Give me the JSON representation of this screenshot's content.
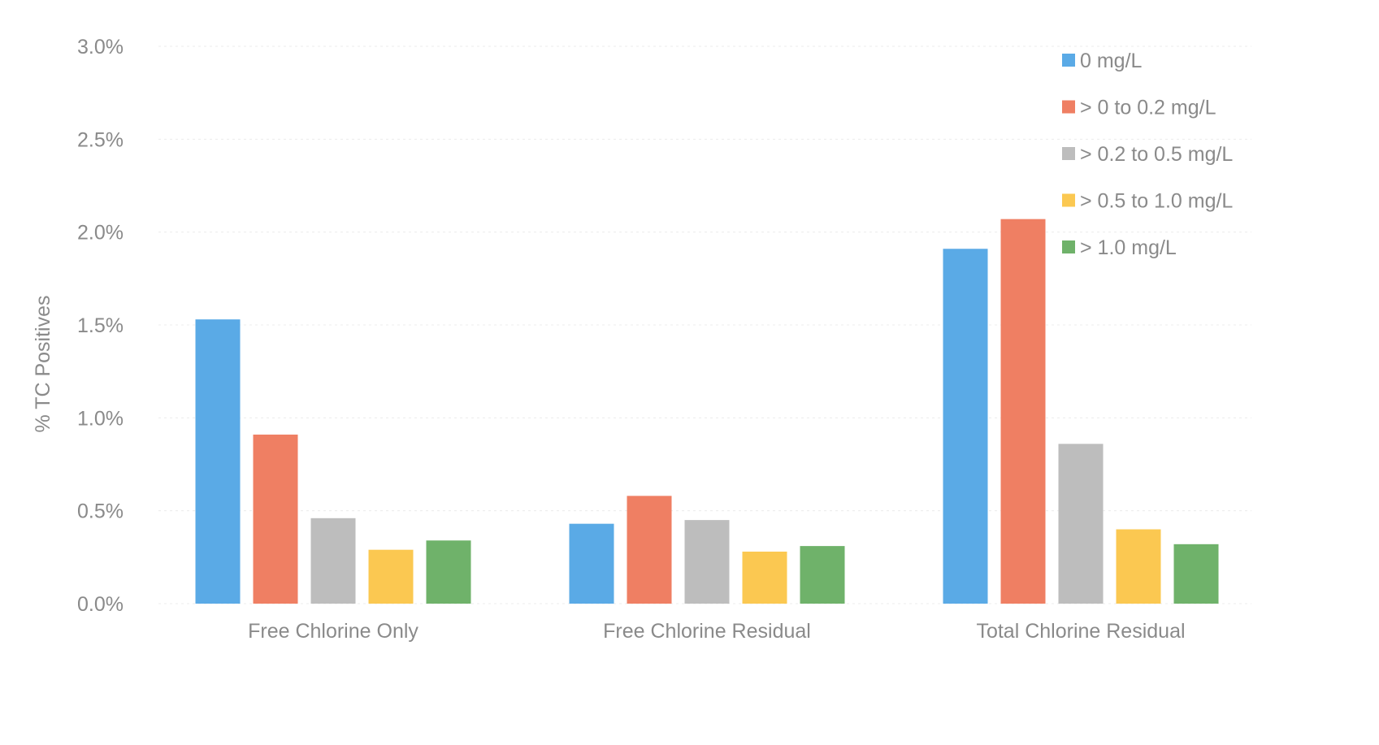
{
  "chart_data": {
    "type": "bar",
    "title": "",
    "xlabel": "",
    "ylabel": "% TC Positives",
    "categories": [
      "Free Chlorine Only",
      "Free Chlorine Residual",
      "Total Chlorine Residual"
    ],
    "series": [
      {
        "name": "0 mg/L",
        "color": "#5aaae6",
        "values": [
          1.53,
          0.43,
          1.91
        ]
      },
      {
        "name": "> 0 to 0.2 mg/L",
        "color": "#ef7f63",
        "values": [
          0.91,
          0.58,
          2.07
        ]
      },
      {
        "name": "> 0.2 to 0.5 mg/L",
        "color": "#bdbdbd",
        "values": [
          0.46,
          0.45,
          0.86
        ]
      },
      {
        "name": "> 0.5 to 1.0 mg/L",
        "color": "#fbc851",
        "values": [
          0.29,
          0.28,
          0.4
        ]
      },
      {
        "name": "> 1.0 mg/L",
        "color": "#6fb26a",
        "values": [
          0.34,
          0.31,
          0.32
        ]
      }
    ],
    "ylim": [
      0,
      3.0
    ],
    "yticks": [
      "0.0%",
      "0.5%",
      "1.0%",
      "1.5%",
      "2.0%",
      "2.5%",
      "3.0%"
    ],
    "grid": true,
    "legend_position": "top-right"
  }
}
